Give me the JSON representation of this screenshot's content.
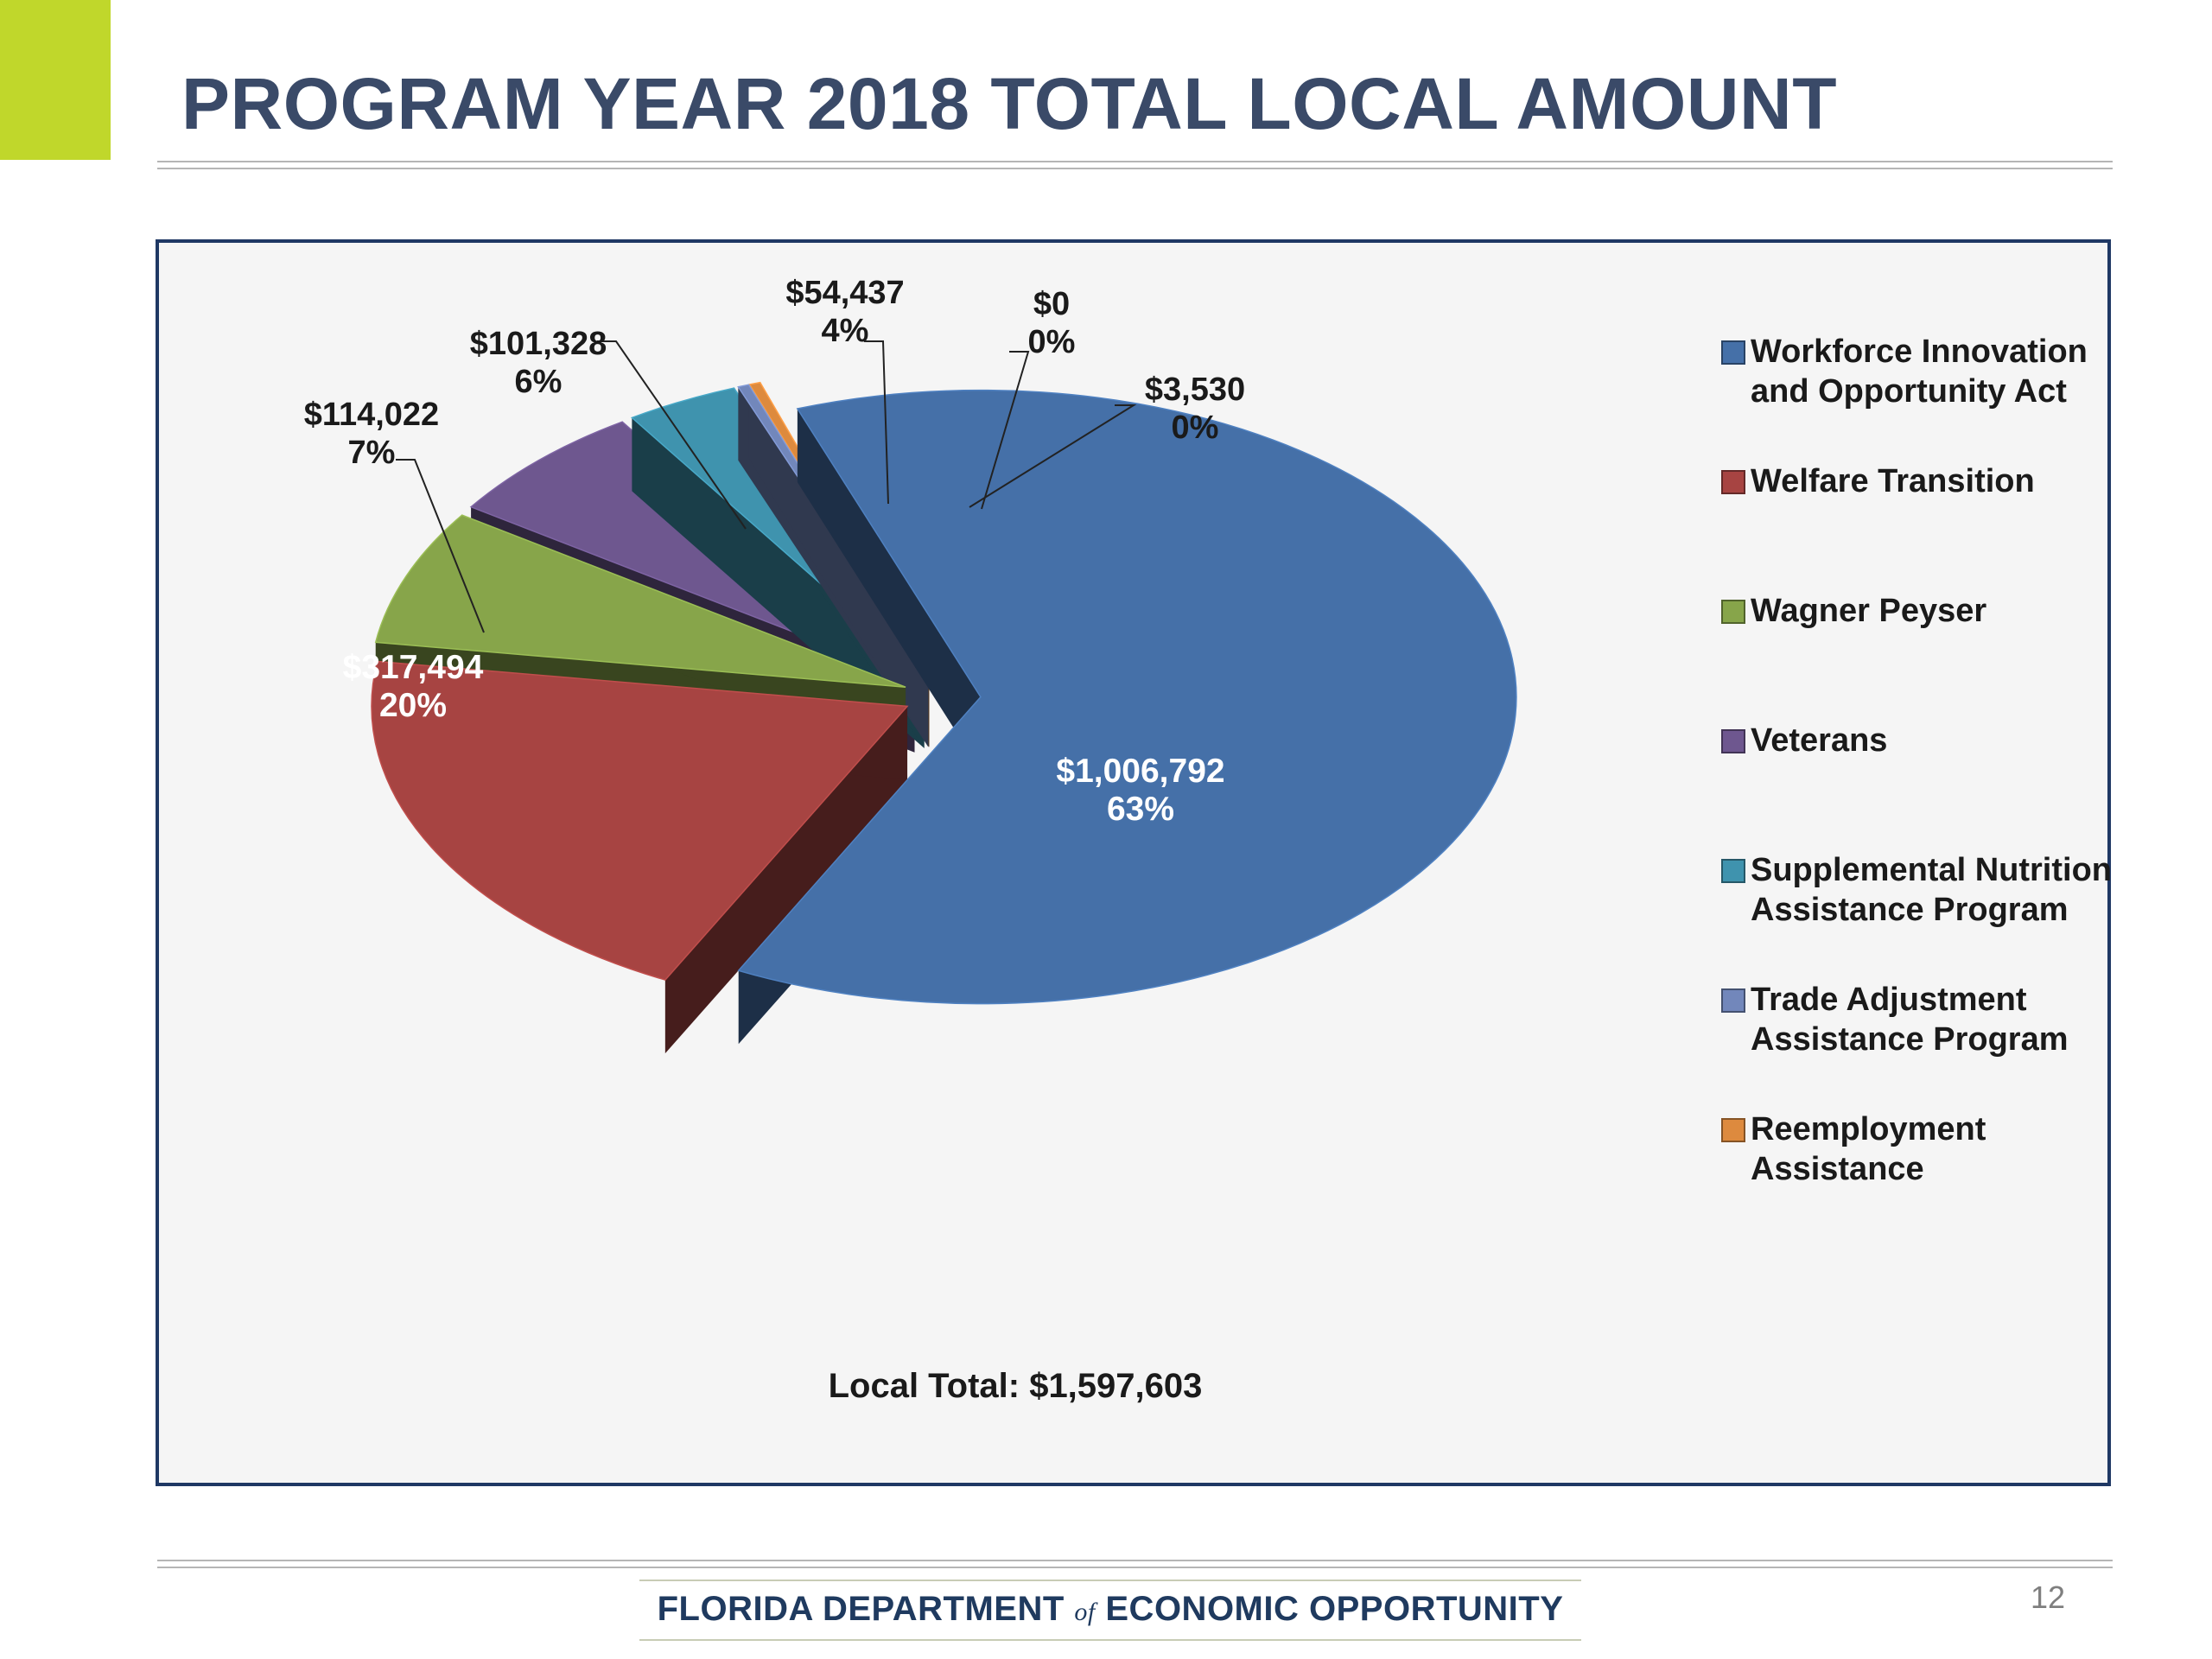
{
  "page": {
    "title": "PROGRAM YEAR 2018 TOTAL LOCAL AMOUNT",
    "accent_color": "#c0d72b",
    "footer": {
      "org_part1": "FLORIDA DEPARTMENT",
      "org_of": "of",
      "org_part2": "ECONOMIC OPPORTUNITY"
    },
    "page_number": "12"
  },
  "chart_data": {
    "type": "pie",
    "style": "3d-exploded",
    "categories": [
      "Workforce Innovation and Opportunity Act",
      "Welfare Transition",
      "Wagner Peyser",
      "Veterans",
      "Supplemental Nutrition Assistance Program",
      "Trade Adjustment Assistance Program",
      "Reemployment Assistance"
    ],
    "values": [
      1006792,
      317494,
      114022,
      101328,
      54437,
      0,
      3530
    ],
    "value_labels": [
      "$1,006,792",
      "$317,494",
      "$114,022",
      "$101,328",
      "$54,437",
      "$0",
      "$3,530"
    ],
    "percent_labels": [
      "63%",
      "20%",
      "7%",
      "6%",
      "4%",
      "0%",
      "0%"
    ],
    "colors": [
      "#4570a8",
      "#a74442",
      "#87a54a",
      "#6e578f",
      "#3f93ae",
      "#7287bb",
      "#dd8a3e"
    ],
    "legend": {
      "placement": "right",
      "entries": [
        [
          "Workforce Innovation",
          "and Opportunity Act"
        ],
        [
          "Welfare Transition"
        ],
        [
          "Wagner Peyser"
        ],
        [
          "Veterans"
        ],
        [
          "Supplemental Nutrition",
          "Assistance Program"
        ],
        [
          "Trade Adjustment",
          "Assistance Program"
        ],
        [
          "Reemployment",
          "Assistance"
        ]
      ]
    },
    "total_label": "Local Total:  $1,597,603"
  }
}
